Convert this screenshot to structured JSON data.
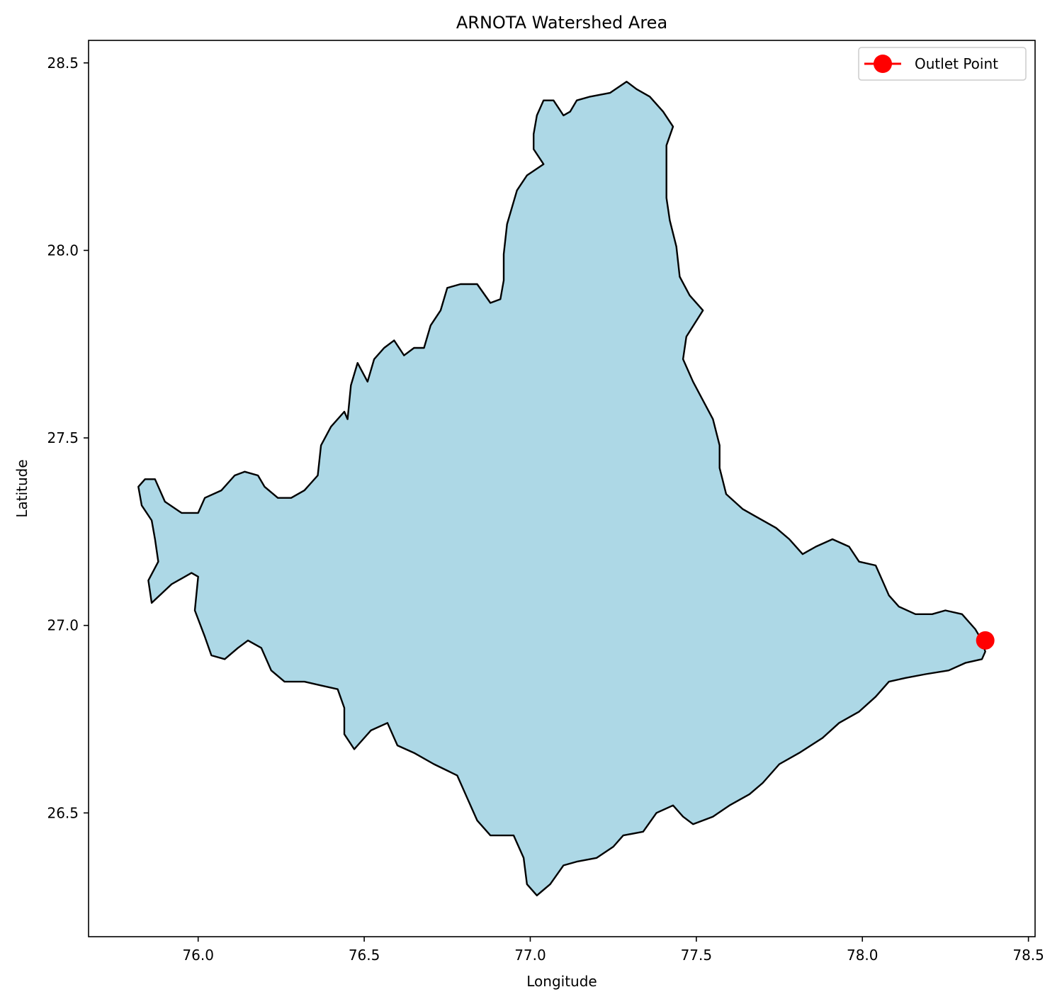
{
  "chart_data": {
    "type": "map",
    "title": "ARNOTA Watershed Area",
    "xlabel": "Longitude",
    "ylabel": "Latitude",
    "xlim": [
      75.67,
      78.52
    ],
    "ylim": [
      26.17,
      28.56
    ],
    "xticks": [
      76.0,
      76.5,
      77.0,
      77.5,
      78.0,
      78.5
    ],
    "xtick_labels": [
      "76.0",
      "76.5",
      "77.0",
      "77.5",
      "78.0",
      "78.5"
    ],
    "yticks": [
      26.5,
      27.0,
      27.5,
      28.0,
      28.5
    ],
    "ytick_labels": [
      "26.5",
      "27.0",
      "27.5",
      "28.0",
      "28.5"
    ],
    "grid": false,
    "legend": {
      "position": "top-right",
      "entries": [
        {
          "label": "Outlet Point",
          "marker": "circle",
          "color": "#ff0000"
        }
      ]
    },
    "watershed": {
      "fill": "#add8e6",
      "stroke": "#000000",
      "boundary": [
        [
          76.0,
          27.3
        ],
        [
          75.95,
          27.3
        ],
        [
          75.9,
          27.33
        ],
        [
          75.87,
          27.39
        ],
        [
          75.84,
          27.39
        ],
        [
          75.82,
          27.37
        ],
        [
          75.83,
          27.32
        ],
        [
          75.86,
          27.28
        ],
        [
          75.87,
          27.23
        ],
        [
          75.88,
          27.17
        ],
        [
          75.85,
          27.12
        ],
        [
          75.86,
          27.06
        ],
        [
          75.92,
          27.11
        ],
        [
          75.98,
          27.14
        ],
        [
          76.0,
          27.13
        ],
        [
          75.99,
          27.04
        ],
        [
          76.02,
          26.97
        ],
        [
          76.04,
          26.92
        ],
        [
          76.08,
          26.91
        ],
        [
          76.12,
          26.94
        ],
        [
          76.15,
          26.96
        ],
        [
          76.19,
          26.94
        ],
        [
          76.22,
          26.88
        ],
        [
          76.26,
          26.85
        ],
        [
          76.32,
          26.85
        ],
        [
          76.37,
          26.84
        ],
        [
          76.42,
          26.83
        ],
        [
          76.44,
          26.78
        ],
        [
          76.44,
          26.71
        ],
        [
          76.47,
          26.67
        ],
        [
          76.52,
          26.72
        ],
        [
          76.57,
          26.74
        ],
        [
          76.6,
          26.68
        ],
        [
          76.65,
          26.66
        ],
        [
          76.71,
          26.63
        ],
        [
          76.78,
          26.6
        ],
        [
          76.81,
          26.54
        ],
        [
          76.84,
          26.48
        ],
        [
          76.88,
          26.44
        ],
        [
          76.95,
          26.44
        ],
        [
          76.98,
          26.38
        ],
        [
          76.99,
          26.31
        ],
        [
          77.02,
          26.28
        ],
        [
          77.06,
          26.31
        ],
        [
          77.1,
          26.36
        ],
        [
          77.14,
          26.37
        ],
        [
          77.2,
          26.38
        ],
        [
          77.25,
          26.41
        ],
        [
          77.28,
          26.44
        ],
        [
          77.34,
          26.45
        ],
        [
          77.38,
          26.5
        ],
        [
          77.43,
          26.52
        ],
        [
          77.46,
          26.49
        ],
        [
          77.49,
          26.47
        ],
        [
          77.55,
          26.49
        ],
        [
          77.6,
          26.52
        ],
        [
          77.66,
          26.55
        ],
        [
          77.7,
          26.58
        ],
        [
          77.75,
          26.63
        ],
        [
          77.81,
          26.66
        ],
        [
          77.88,
          26.7
        ],
        [
          77.93,
          26.74
        ],
        [
          77.99,
          26.77
        ],
        [
          78.04,
          26.81
        ],
        [
          78.08,
          26.85
        ],
        [
          78.13,
          26.86
        ],
        [
          78.19,
          26.87
        ],
        [
          78.26,
          26.88
        ],
        [
          78.31,
          26.9
        ],
        [
          78.36,
          26.91
        ],
        [
          78.37,
          26.93
        ],
        [
          78.36,
          26.96
        ],
        [
          78.34,
          26.99
        ],
        [
          78.3,
          27.03
        ],
        [
          78.25,
          27.04
        ],
        [
          78.21,
          27.03
        ],
        [
          78.16,
          27.03
        ],
        [
          78.11,
          27.05
        ],
        [
          78.08,
          27.08
        ],
        [
          78.06,
          27.12
        ],
        [
          78.04,
          27.16
        ],
        [
          77.99,
          27.17
        ],
        [
          77.96,
          27.21
        ],
        [
          77.91,
          27.23
        ],
        [
          77.86,
          27.21
        ],
        [
          77.82,
          27.19
        ],
        [
          77.78,
          27.23
        ],
        [
          77.74,
          27.26
        ],
        [
          77.68,
          27.29
        ],
        [
          77.64,
          27.31
        ],
        [
          77.59,
          27.35
        ],
        [
          77.57,
          27.42
        ],
        [
          77.57,
          27.48
        ],
        [
          77.55,
          27.55
        ],
        [
          77.52,
          27.6
        ],
        [
          77.49,
          27.65
        ],
        [
          77.46,
          27.71
        ],
        [
          77.47,
          27.77
        ],
        [
          77.52,
          27.84
        ],
        [
          77.48,
          27.88
        ],
        [
          77.45,
          27.93
        ],
        [
          77.44,
          28.01
        ],
        [
          77.42,
          28.08
        ],
        [
          77.41,
          28.14
        ],
        [
          77.41,
          28.22
        ],
        [
          77.41,
          28.28
        ],
        [
          77.43,
          28.33
        ],
        [
          77.4,
          28.37
        ],
        [
          77.36,
          28.41
        ],
        [
          77.32,
          28.43
        ],
        [
          77.29,
          28.45
        ],
        [
          77.24,
          28.42
        ],
        [
          77.18,
          28.41
        ],
        [
          77.14,
          28.4
        ],
        [
          77.12,
          28.37
        ],
        [
          77.1,
          28.36
        ],
        [
          77.07,
          28.4
        ],
        [
          77.04,
          28.4
        ],
        [
          77.02,
          28.36
        ],
        [
          77.01,
          28.31
        ],
        [
          77.01,
          28.27
        ],
        [
          77.04,
          28.23
        ],
        [
          76.99,
          28.2
        ],
        [
          76.96,
          28.16
        ],
        [
          76.93,
          28.07
        ],
        [
          76.92,
          27.99
        ],
        [
          76.92,
          27.92
        ],
        [
          76.91,
          27.87
        ],
        [
          76.88,
          27.86
        ],
        [
          76.84,
          27.91
        ],
        [
          76.79,
          27.91
        ],
        [
          76.75,
          27.9
        ],
        [
          76.73,
          27.84
        ],
        [
          76.7,
          27.8
        ],
        [
          76.68,
          27.74
        ],
        [
          76.65,
          27.74
        ],
        [
          76.62,
          27.72
        ],
        [
          76.59,
          27.76
        ],
        [
          76.56,
          27.74
        ],
        [
          76.53,
          27.71
        ],
        [
          76.51,
          27.65
        ],
        [
          76.48,
          27.7
        ],
        [
          76.46,
          27.64
        ],
        [
          76.45,
          27.55
        ],
        [
          76.44,
          27.57
        ],
        [
          76.4,
          27.53
        ],
        [
          76.37,
          27.48
        ],
        [
          76.36,
          27.4
        ],
        [
          76.32,
          27.36
        ],
        [
          76.28,
          27.34
        ],
        [
          76.24,
          27.34
        ],
        [
          76.2,
          27.37
        ],
        [
          76.18,
          27.4
        ],
        [
          76.14,
          27.41
        ],
        [
          76.11,
          27.4
        ],
        [
          76.07,
          27.36
        ],
        [
          76.02,
          27.34
        ]
      ]
    },
    "outlet": {
      "label": "Outlet Point",
      "lon": 78.37,
      "lat": 26.96,
      "color": "#ff0000"
    }
  }
}
